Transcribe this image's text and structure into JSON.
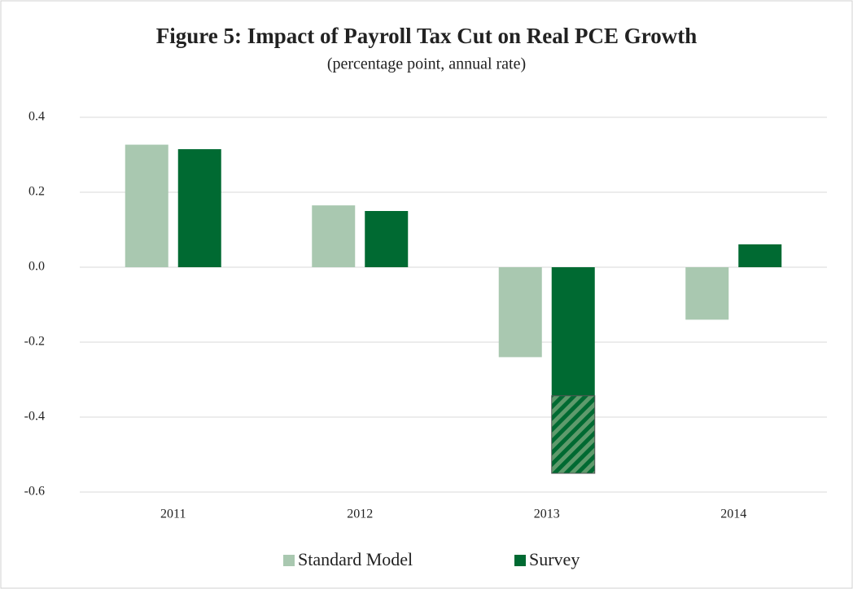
{
  "chart_data": {
    "type": "bar",
    "title": "Figure 5: Impact of Payroll Tax Cut on Real PCE Growth",
    "subtitle": "(percentage point, annual rate)",
    "categories": [
      "2011",
      "2012",
      "2013",
      "2014"
    ],
    "series": [
      {
        "name": "Standard Model",
        "color": "#a9c8b0",
        "values": [
          0.327,
          0.165,
          -0.24,
          -0.14
        ]
      },
      {
        "name": "Survey",
        "color": "#006a32",
        "values": [
          0.315,
          0.15,
          -0.55,
          0.061
        ]
      }
    ],
    "hatched": {
      "series": 1,
      "index": 2,
      "start": -0.343
    },
    "ylim": [
      -0.6,
      0.4
    ],
    "yticks": [
      {
        "value": 0.4,
        "label": "0.4"
      },
      {
        "value": 0.2,
        "label": "0.2"
      },
      {
        "value": 0,
        "label": "0.0"
      },
      {
        "value": -0.2,
        "label": "-0.2"
      },
      {
        "value": -0.4,
        "label": "-0.4"
      },
      {
        "value": -0.6,
        "label": "-0.6"
      }
    ],
    "grid": true,
    "legend": "bottom"
  }
}
